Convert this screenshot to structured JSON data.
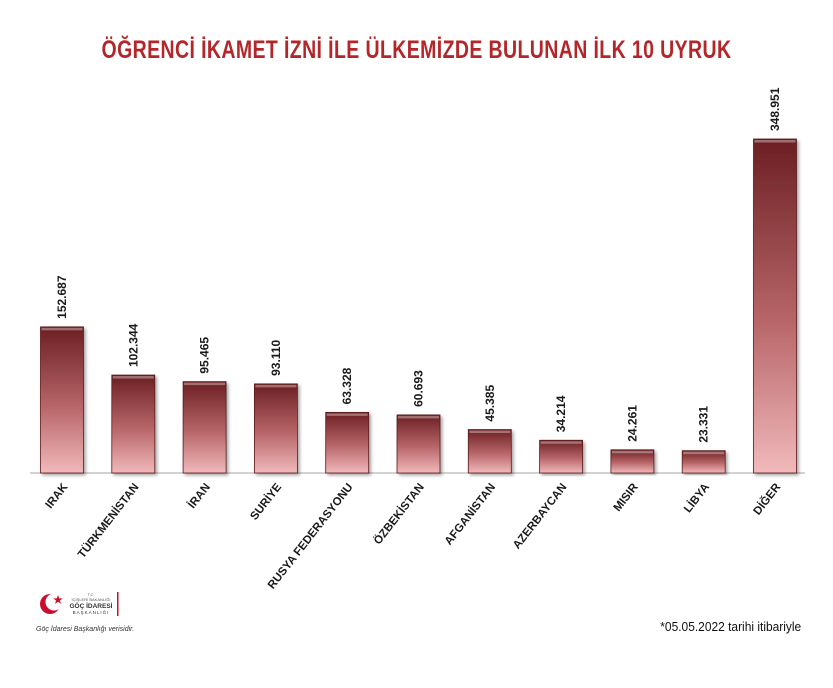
{
  "chart_data": {
    "type": "bar",
    "title": "ÖĞRENCİ İKAMET İZNİ İLE ÜLKEMİZDE BULUNAN İLK 10 UYRUK",
    "categories": [
      "IRAK",
      "TÜRKMENİSTAN",
      "İRAN",
      "SURİYE",
      "RUSYA FEDERASYONU",
      "ÖZBEKİSTAN",
      "AFGANİSTAN",
      "AZERBAYCAN",
      "MISIR",
      "LİBYA",
      "DİĞER"
    ],
    "values": [
      152687,
      102344,
      95465,
      93110,
      63328,
      60693,
      45385,
      34214,
      24261,
      23331,
      348951
    ],
    "value_labels": [
      "152.687",
      "102.344",
      "95.465",
      "93.110",
      "63.328",
      "60.693",
      "45.385",
      "34.214",
      "24.261",
      "23.331",
      "348.951"
    ],
    "ylim": [
      0,
      348951
    ],
    "grid": false,
    "colors": {
      "bar_top": "#6b1f22",
      "bar_bottom": "#f1b9bb",
      "title": "#b3262a"
    }
  },
  "logo": {
    "line1": "T.C.",
    "line2": "İÇİŞLERİ BAKANLIĞI",
    "line3": "GÖÇ İDARESİ",
    "line4": "BAŞKANLIĞI",
    "tagline": "Göç İdaresi Başkanlığı verisidir.",
    "icon": "crescent-star-icon"
  },
  "footer_note": "*05.05.2022 tarihi itibariyle"
}
